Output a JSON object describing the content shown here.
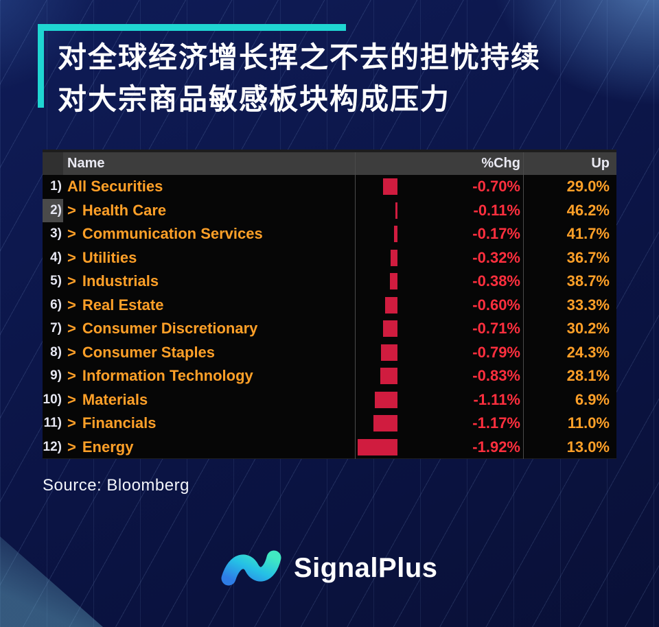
{
  "header": {
    "title_line1": "对全球经济增长挥之不去的担忧持续",
    "title_line2": "对大宗商品敏感板块构成压力"
  },
  "footer": {
    "source": "Source: Bloomberg",
    "brand": "SignalPlus",
    "logo_icon": "signalplus-wave-icon"
  },
  "colors": {
    "background_navy": "#0b1445",
    "accent_cyan": "#1fd6d2",
    "table_header_bg": "#3d3d3d",
    "table_bg": "#060606",
    "sector_name_orange": "#ffa028",
    "chg_value_red": "#ff2f3e",
    "up_value_orange": "#ffa028",
    "bar_crimson": "#d01c3f",
    "row_number_white": "#e6e7f2",
    "selected_gutter_gray": "#4a4a4a"
  },
  "chart_data": {
    "type": "table",
    "title": "Sector %Chg with negative bars and Up percentage (Bloomberg screen)",
    "columns": [
      "Name",
      "%Chg",
      "Up"
    ],
    "bar_column": "%Chg",
    "bar_direction": "negative-extends-left",
    "bar_axis_note": "bars right-aligned at zero line, length proportional to |%Chg|",
    "rows": [
      {
        "num": "1)",
        "name": "All Securities",
        "has_arrow": false,
        "selected": false,
        "chg_pct": -0.7,
        "chg_label": "-0.70%",
        "up_pct": 29.0,
        "up_label": "29.0%"
      },
      {
        "num": "2)",
        "name": "Health Care",
        "has_arrow": true,
        "selected": true,
        "chg_pct": -0.11,
        "chg_label": "-0.11%",
        "up_pct": 46.2,
        "up_label": "46.2%"
      },
      {
        "num": "3)",
        "name": "Communication Services",
        "has_arrow": true,
        "selected": false,
        "chg_pct": -0.17,
        "chg_label": "-0.17%",
        "up_pct": 41.7,
        "up_label": "41.7%"
      },
      {
        "num": "4)",
        "name": "Utilities",
        "has_arrow": true,
        "selected": false,
        "chg_pct": -0.32,
        "chg_label": "-0.32%",
        "up_pct": 36.7,
        "up_label": "36.7%"
      },
      {
        "num": "5)",
        "name": "Industrials",
        "has_arrow": true,
        "selected": false,
        "chg_pct": -0.38,
        "chg_label": "-0.38%",
        "up_pct": 38.7,
        "up_label": "38.7%"
      },
      {
        "num": "6)",
        "name": "Real Estate",
        "has_arrow": true,
        "selected": false,
        "chg_pct": -0.6,
        "chg_label": "-0.60%",
        "up_pct": 33.3,
        "up_label": "33.3%"
      },
      {
        "num": "7)",
        "name": "Consumer Discretionary",
        "has_arrow": true,
        "selected": false,
        "chg_pct": -0.71,
        "chg_label": "-0.71%",
        "up_pct": 30.2,
        "up_label": "30.2%"
      },
      {
        "num": "8)",
        "name": "Consumer Staples",
        "has_arrow": true,
        "selected": false,
        "chg_pct": -0.79,
        "chg_label": "-0.79%",
        "up_pct": 24.3,
        "up_label": "24.3%"
      },
      {
        "num": "9)",
        "name": "Information Technology",
        "has_arrow": true,
        "selected": false,
        "chg_pct": -0.83,
        "chg_label": "-0.83%",
        "up_pct": 28.1,
        "up_label": "28.1%"
      },
      {
        "num": "10)",
        "name": "Materials",
        "has_arrow": true,
        "selected": false,
        "chg_pct": -1.11,
        "chg_label": "-1.11%",
        "up_pct": 6.9,
        "up_label": "6.9%"
      },
      {
        "num": "11)",
        "name": "Financials",
        "has_arrow": true,
        "selected": false,
        "chg_pct": -1.17,
        "chg_label": "-1.17%",
        "up_pct": 11.0,
        "up_label": "11.0%"
      },
      {
        "num": "12)",
        "name": "Energy",
        "has_arrow": true,
        "selected": false,
        "chg_pct": -1.92,
        "chg_label": "-1.92%",
        "up_pct": 13.0,
        "up_label": "13.0%"
      }
    ]
  }
}
